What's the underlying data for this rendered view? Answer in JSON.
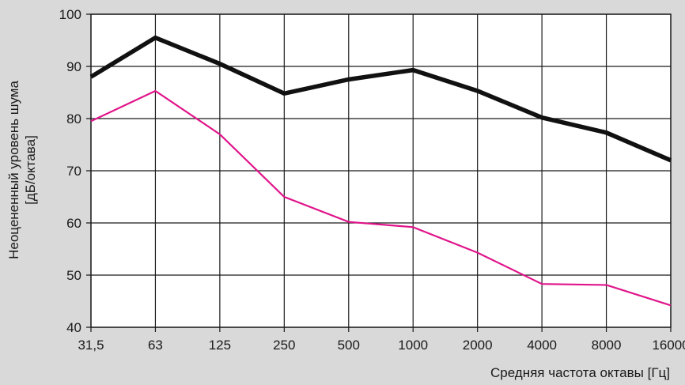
{
  "chart_data": {
    "type": "line",
    "categories": [
      "31,5",
      "63",
      "125",
      "250",
      "500",
      "1000",
      "2000",
      "4000",
      "8000",
      "16000"
    ],
    "series": [
      {
        "values": [
          88,
          95.5,
          90.5,
          84.8,
          87.5,
          89.3,
          85.3,
          80.2,
          77.3,
          72
        ],
        "color": "#111111"
      },
      {
        "values": [
          79.5,
          85.3,
          77,
          65,
          60.2,
          59.2,
          54.3,
          48.3,
          48.1,
          44.2
        ],
        "color": "#e0148a"
      }
    ],
    "xlabel": "Средняя частота октавы [Гц]",
    "ylabel": [
      "Неоцененный уровень шума",
      "[дБ/октава]"
    ],
    "ylim": [
      40,
      100
    ],
    "yticks": [
      40,
      50,
      60,
      70,
      80,
      90,
      100
    ],
    "grid": true,
    "legend": "none"
  }
}
